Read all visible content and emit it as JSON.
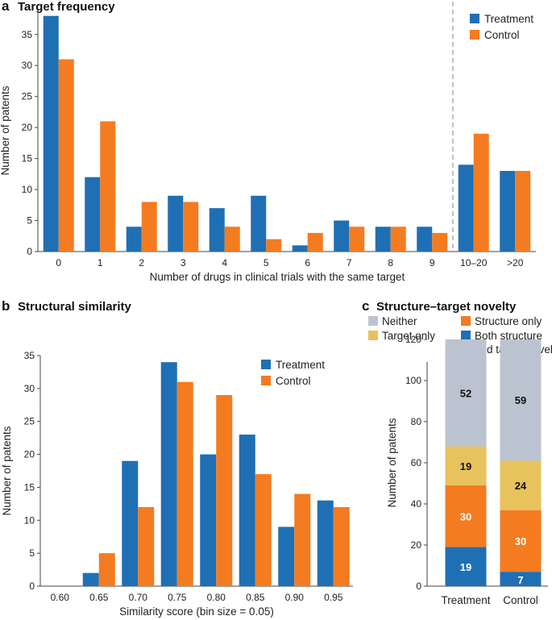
{
  "colors": {
    "treatment": "#1f6fb5",
    "control": "#f47b20",
    "neither": "#bcc3d0",
    "target_only": "#e8c25c",
    "structure_only": "#f47b20",
    "both": "#1f6fb5"
  },
  "chart_data": [
    {
      "type": "bar",
      "panel": "a",
      "title": "Target frequency",
      "xlabel": "Number of drugs in clinical trials with the same target",
      "ylabel": "Number of patents",
      "categories": [
        "0",
        "1",
        "2",
        "3",
        "4",
        "5",
        "6",
        "7",
        "8",
        "9",
        "10–20",
        ">20"
      ],
      "series": [
        {
          "name": "Treatment",
          "values": [
            38,
            12,
            4,
            9,
            7,
            9,
            1,
            5,
            4,
            4,
            14,
            13
          ]
        },
        {
          "name": "Control",
          "values": [
            31,
            21,
            8,
            8,
            4,
            2,
            3,
            4,
            4,
            3,
            19,
            13
          ]
        }
      ],
      "ylim": [
        0,
        39
      ],
      "yticks": [
        0,
        5,
        10,
        15,
        20,
        25,
        30,
        35
      ],
      "legend": "top-right",
      "annotation": "dashed vertical separator between 9 and 10–20"
    },
    {
      "type": "bar",
      "panel": "b",
      "title": "Structural similarity",
      "xlabel": "Similarity score (bin size = 0.05)",
      "ylabel": "Number of patents",
      "categories": [
        "0.60",
        "0.65",
        "0.70",
        "0.75",
        "0.80",
        "0.85",
        "0.90",
        "0.95"
      ],
      "series": [
        {
          "name": "Treatment",
          "values": [
            0,
            2,
            19,
            34,
            20,
            23,
            9,
            13
          ]
        },
        {
          "name": "Control",
          "values": [
            0,
            5,
            12,
            31,
            29,
            17,
            14,
            12
          ]
        }
      ],
      "ylim": [
        0,
        35
      ],
      "yticks": [
        0,
        5,
        10,
        15,
        20,
        25,
        30,
        35
      ],
      "legend": "top-right"
    },
    {
      "type": "bar",
      "stacked": true,
      "panel": "c",
      "title": "Structure–target novelty",
      "ylabel": "Number of patents",
      "categories": [
        "Treatment",
        "Control"
      ],
      "legend_items": [
        "Neither",
        "Structure only",
        "Target only",
        "Both structure",
        "and target novel"
      ],
      "series": [
        {
          "name": "Both structure and target novel",
          "values": [
            19,
            7
          ]
        },
        {
          "name": "Structure only",
          "values": [
            30,
            30
          ]
        },
        {
          "name": "Target only",
          "values": [
            19,
            24
          ]
        },
        {
          "name": "Neither",
          "values": [
            52,
            59
          ]
        }
      ],
      "ylim": [
        0,
        120
      ],
      "yticks": [
        0,
        20,
        40,
        60,
        80,
        100,
        120
      ],
      "legend": "top"
    }
  ]
}
